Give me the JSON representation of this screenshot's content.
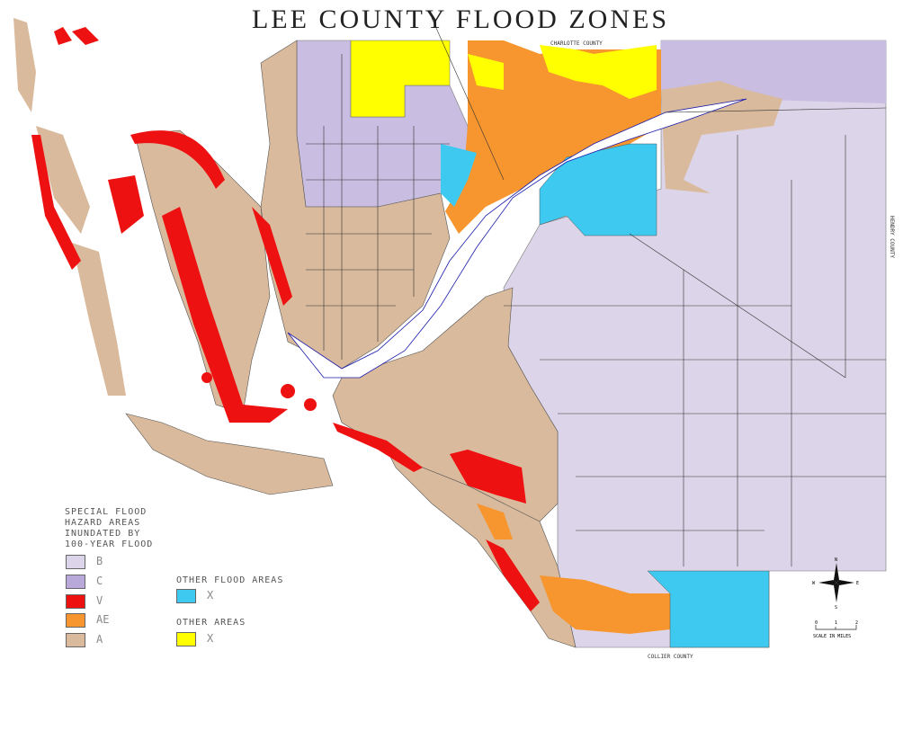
{
  "title": "LEE COUNTY FLOOD ZONES",
  "county_labels": {
    "north": "CHARLOTTE COUNTY",
    "east": "HENDRY COUNTY",
    "south": "COLLIER COUNTY"
  },
  "legend": {
    "heading_lines": [
      "SPECIAL FLOOD",
      "HAZARD AREAS",
      "INUNDATED BY",
      "100-YEAR FLOOD"
    ],
    "zones": [
      {
        "label": "B",
        "color": "#dcd4e8"
      },
      {
        "label": "C",
        "color": "#b9a9da"
      },
      {
        "label": "V",
        "color": "#ee1111"
      },
      {
        "label": "AE",
        "color": "#f7962e"
      },
      {
        "label": "A",
        "color": "#d9ba9c"
      }
    ],
    "other_flood_heading": "OTHER FLOOD AREAS",
    "other_flood": {
      "label": "X",
      "color": "#3ec9f0"
    },
    "other_heading": "OTHER AREAS",
    "other": {
      "label": "X",
      "color": "#ffff00"
    }
  },
  "compass": {
    "n": "N",
    "s": "S",
    "e": "E",
    "w": "W"
  },
  "scale": {
    "ticks": [
      "0",
      "1",
      "2"
    ],
    "label": "SCALE IN MILES"
  }
}
